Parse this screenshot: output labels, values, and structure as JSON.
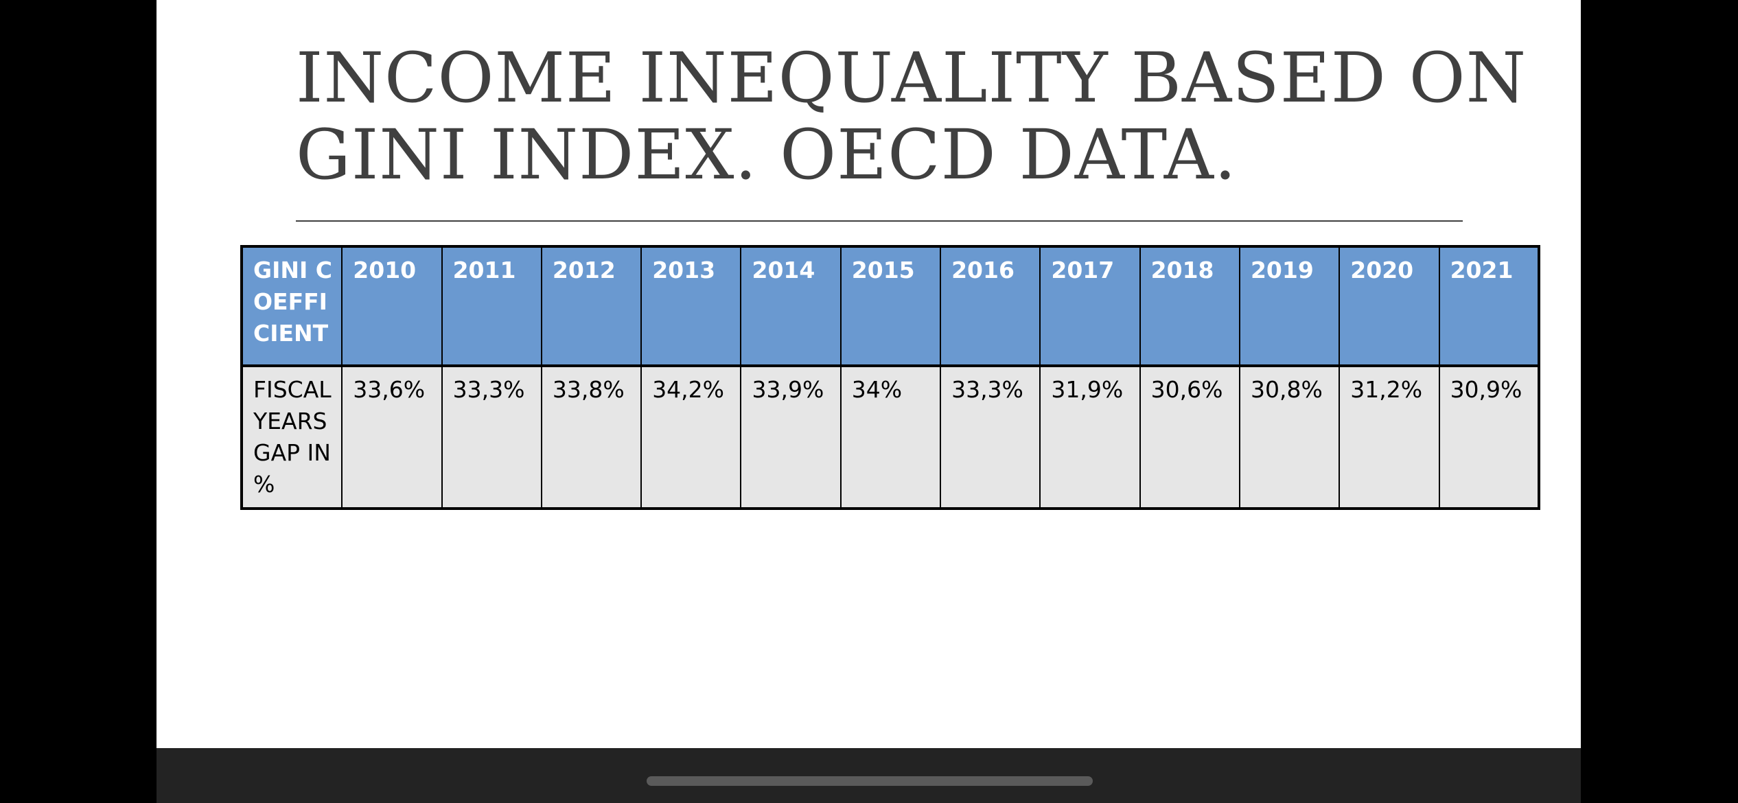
{
  "slide": {
    "title_line1": "INCOME INEQUALITY BASED ON",
    "title_line2": "GINI INDEX. OECD DATA."
  },
  "table": {
    "corner_header": "GINI COEFFICIENT",
    "years": [
      "2010",
      "2011",
      "2012",
      "2013",
      "2014",
      "2015",
      "2016",
      "2017",
      "2018",
      "2019",
      "2020",
      "2021"
    ],
    "row_label": "FISCAL YEARS GAP IN %",
    "values": [
      "33,6%",
      "33,3%",
      "33,8%",
      "34,2%",
      "33,9%",
      "34%",
      "33,3%",
      "31,9%",
      "30,6%",
      "30,8%",
      "31,2%",
      "30,9%"
    ]
  },
  "colors": {
    "header_fill": "#6a99d0",
    "body_fill": "#e6e6e6",
    "title_text": "#404040"
  }
}
